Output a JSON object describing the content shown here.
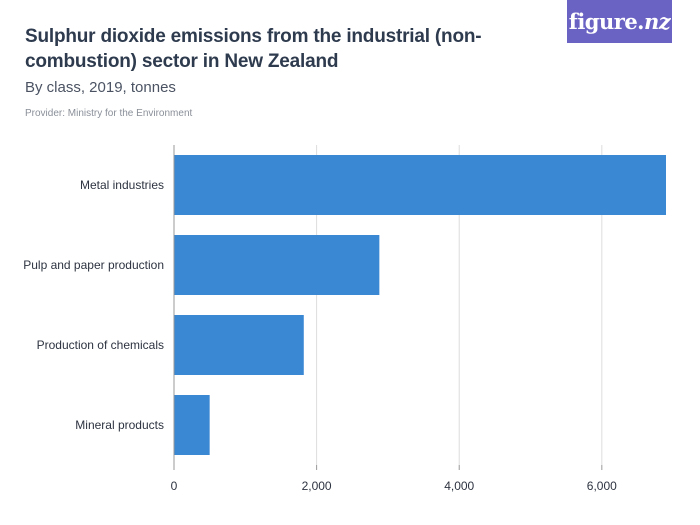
{
  "header": {
    "title": "Sulphur dioxide emissions from the industrial (non-combustion) sector in New Zealand",
    "subtitle": "By class, 2019, tonnes",
    "provider": "Provider: Ministry for the Environment"
  },
  "logo": {
    "brand": "figure.",
    "suffix": "nz"
  },
  "colors": {
    "bar": "#3a87d3",
    "grid": "#dcdcdc",
    "axis": "#999999",
    "logo_bg": "#6b63c4"
  },
  "chart_data": {
    "type": "bar",
    "orientation": "horizontal",
    "categories": [
      "Metal industries",
      "Pulp and paper production",
      "Production of chemicals",
      "Mineral products"
    ],
    "values": [
      6900,
      2880,
      1820,
      500
    ],
    "xlim": [
      0,
      6900
    ],
    "xticks": [
      0,
      2000,
      4000,
      6000
    ],
    "xtick_labels": [
      "0",
      "2,000",
      "4,000",
      "6,000"
    ],
    "grid": true,
    "legend": "none"
  }
}
